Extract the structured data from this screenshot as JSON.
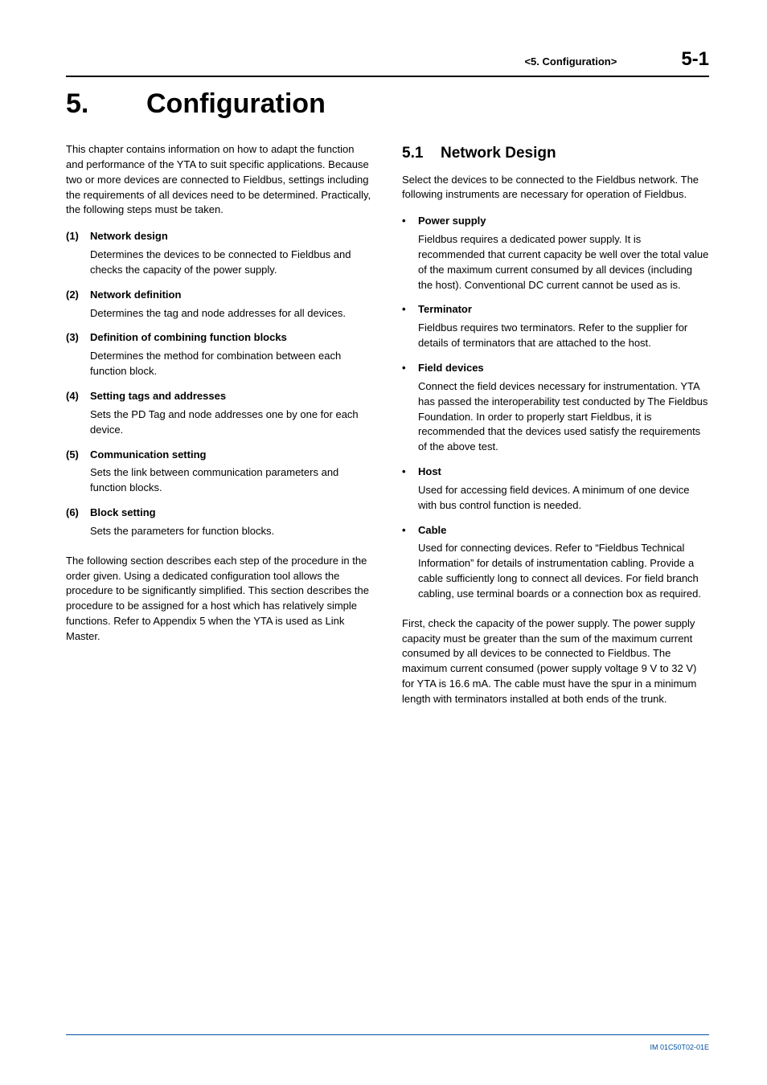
{
  "header": {
    "chapter_label": "<5.  Configuration>",
    "page_number": "5-1"
  },
  "title": {
    "number": "5.",
    "text": "Configuration"
  },
  "left_column": {
    "intro": "This chapter contains information on how to adapt the function and performance of the YTA to suit specific applications. Because two or more devices are connected to Fieldbus, settings including the requirements of all devices need to be determined. Practically, the following steps must be taken.",
    "steps": [
      {
        "num": "(1)",
        "title": "Network design",
        "body": "Determines the devices to be connected to Fieldbus and checks the capacity of the power supply."
      },
      {
        "num": "(2)",
        "title": "Network definition",
        "body": "Determines the tag and node addresses for all devices."
      },
      {
        "num": "(3)",
        "title": "Definition of combining function blocks",
        "body": "Determines the method for combination between each function block."
      },
      {
        "num": "(4)",
        "title": "Setting tags and addresses",
        "body": "Sets the PD Tag and node addresses one by one for each device."
      },
      {
        "num": "(5)",
        "title": "Communication setting",
        "body": "Sets the link between communication parameters and function blocks."
      },
      {
        "num": "(6)",
        "title": "Block setting",
        "body": "Sets the parameters for function blocks."
      }
    ],
    "after_steps": "The following section describes each step of the procedure in the order given. Using a dedicated configuration tool allows the procedure to be significantly simplified. This section describes the procedure to be assigned for a host which has relatively simple functions. Refer to Appendix 5 when the YTA is used as Link Master."
  },
  "right_column": {
    "section": {
      "number": "5.1",
      "title": "Network Design"
    },
    "intro": "Select the devices to be connected to the Fieldbus network. The following instruments are necessary for operation of Fieldbus.",
    "bullets": [
      {
        "title": "Power supply",
        "body": "Fieldbus requires a dedicated power supply. It is recommended that current capacity be well over the total value of the maximum current consumed by all devices (including the host). Conventional DC current cannot be used as is."
      },
      {
        "title": "Terminator",
        "body": "Fieldbus requires two terminators. Refer to the supplier for details of terminators that are attached to the host."
      },
      {
        "title": "Field devices",
        "body": "Connect the field devices necessary for instrumentation. YTA has passed the interoperability test conducted by The Fieldbus Foundation. In order to properly start Fieldbus, it is recommended that the devices used satisfy the requirements of the above test."
      },
      {
        "title": "Host",
        "body": "Used for accessing field devices. A minimum of one device with bus control function is needed."
      },
      {
        "title": "Cable",
        "body": "Used for connecting devices. Refer to “Fieldbus Technical Information” for details of instrumentation cabling. Provide a cable sufficiently long to connect all devices. For field branch cabling, use terminal boards or a connection box as required."
      }
    ],
    "closing": "First, check the capacity of the power supply. The power supply capacity must be greater than the sum of the maximum current consumed by all devices to be connected to Fieldbus. The maximum current consumed (power supply voltage 9 V to 32 V) for YTA is 16.6 mA. The cable must have the spur in a minimum length with terminators installed at both ends of the trunk."
  },
  "footer": {
    "doc_id": "IM 01C50T02-01E",
    "rule_color": "#0050a0",
    "text_color": "#0050a0"
  }
}
